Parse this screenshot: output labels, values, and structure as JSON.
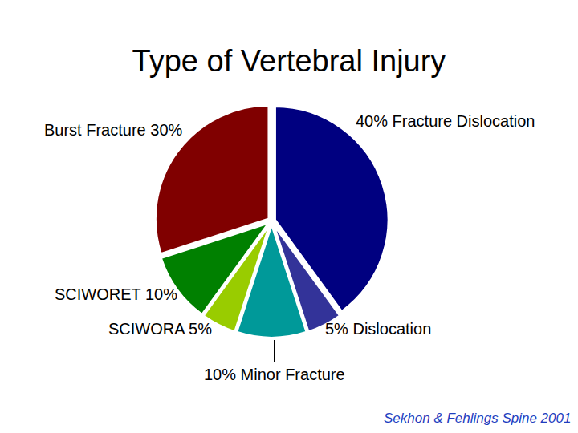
{
  "chart_data": {
    "type": "pie",
    "title": "Type of Vertebral Injury",
    "categories": [
      "Fracture Dislocation",
      "Dislocation",
      "Minor Fracture",
      "SCIWORA",
      "SCIWORET",
      "Burst Fracture"
    ],
    "values": [
      40,
      5,
      10,
      5,
      10,
      30
    ],
    "value_labels": [
      "40% Fracture Dislocation",
      "5% Dislocation",
      "10% Minor Fracture",
      "SCIWORA 5%",
      "SCIWORET 10%",
      "Burst Fracture 30%"
    ],
    "colors": [
      "#000080",
      "#333399",
      "#009999",
      "#99cc00",
      "#008000",
      "#800000"
    ],
    "data_labels": true,
    "source": "Sekhon & Fehlings Spine 2001"
  }
}
